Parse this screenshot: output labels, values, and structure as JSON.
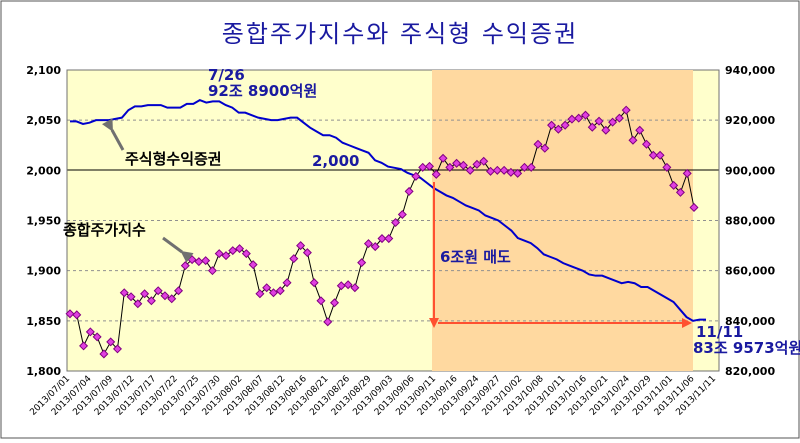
{
  "chart_data": {
    "type": "line",
    "title": "종합주가지수와 주식형 수익증권",
    "y_left": {
      "lim": [
        1800,
        2100
      ],
      "ticks": [
        "1,800",
        "1,850",
        "1,900",
        "1,950",
        "2,000",
        "2,050",
        "2,100"
      ]
    },
    "y_right": {
      "lim": [
        820000,
        940000
      ],
      "ticks": [
        "820,000",
        "840,000",
        "860,000",
        "880,000",
        "900,000",
        "920,000",
        "940,000"
      ]
    },
    "x_tick_labels": [
      "2013/07/01",
      "2013/07/04",
      "2013/07/09",
      "2013/07/12",
      "2013/07/17",
      "2013/07/22",
      "2013/07/25",
      "2013/07/30",
      "2013/08/02",
      "2013/08/07",
      "2013/08/12",
      "2013/08/16",
      "2013/08/21",
      "2013/08/26",
      "2013/08/29",
      "2013/09/03",
      "2013/09/06",
      "2013/09/11",
      "2013/09/16",
      "2013/09/24",
      "2013/09/27",
      "2013/10/02",
      "2013/10/08",
      "2013/10/11",
      "2013/10/16",
      "2013/10/21",
      "2013/10/24",
      "2013/10/29",
      "2013/11/01",
      "2013/11/06",
      "2013/11/11"
    ],
    "series": [
      {
        "name": "종합주가지수",
        "axis": "left",
        "color": "#800080",
        "marker_color": "#e040e0",
        "values": [
          1857,
          1856,
          1825,
          1839,
          1834,
          1817,
          1829,
          1822,
          1878,
          1874,
          1867,
          1877,
          1870,
          1880,
          1875,
          1872,
          1880,
          1905,
          1911,
          1909,
          1910,
          1900,
          1917,
          1915,
          1920,
          1922,
          1917,
          1906,
          1877,
          1883,
          1878,
          1880,
          1888,
          1912,
          1925,
          1918,
          1888,
          1870,
          1849,
          1868,
          1885,
          1886,
          1883,
          1908,
          1927,
          1924,
          1932,
          1932,
          1948,
          1956,
          1979,
          1994,
          2003,
          2004,
          1996,
          2012,
          2003,
          2007,
          2005,
          2000,
          2006,
          2009,
          1999,
          2000,
          2000,
          1998,
          1997,
          2003,
          2003,
          2026,
          2022,
          2045,
          2041,
          2045,
          2051,
          2052,
          2055,
          2043,
          2049,
          2040,
          2048,
          2052,
          2060,
          2030,
          2040,
          2026,
          2015,
          2015,
          2003,
          1985,
          1978,
          1997,
          1963
        ]
      },
      {
        "name": "주식형수익증권",
        "axis": "right",
        "color": "#0000cc",
        "values": [
          919500,
          919500,
          918500,
          919000,
          920000,
          920000,
          920000,
          920500,
          921000,
          924000,
          925500,
          925500,
          926000,
          926000,
          926000,
          925000,
          925000,
          925000,
          926500,
          926500,
          928000,
          927000,
          927500,
          927500,
          926000,
          925000,
          923000,
          923000,
          922000,
          921000,
          920500,
          920000,
          920000,
          920500,
          921000,
          921000,
          919000,
          917000,
          915500,
          914000,
          914000,
          913000,
          911000,
          910000,
          909000,
          908000,
          907000,
          904000,
          903000,
          901500,
          901000,
          900500,
          899000,
          898000,
          897000,
          895000,
          893000,
          891500,
          890000,
          889000,
          887500,
          886000,
          885000,
          884000,
          882000,
          881000,
          880000,
          878000,
          876000,
          873000,
          872000,
          871000,
          869000,
          866500,
          865500,
          864500,
          863000,
          862000,
          861000,
          860000,
          858500,
          858000,
          858000,
          857000,
          856000,
          855000,
          855500,
          855000,
          853500,
          853500,
          852000,
          850500,
          849000,
          847500,
          844500,
          841500,
          840000,
          840500,
          840500
        ]
      }
    ],
    "reference_line": {
      "axis": "left",
      "value": 2000,
      "label": "2,000"
    },
    "highlight_region": {
      "from": "2013/09/11",
      "to": "2013/11/07"
    },
    "annotations": {
      "peak_date": "7/26",
      "peak_amount": "92조 8900억원",
      "end_date": "11/11",
      "end_amount": "83조 9573억원",
      "sell_label": "6조원 매도",
      "fund_label": "주식형수익증권",
      "index_label": "종합주가지수"
    },
    "grid": true,
    "legend": "none"
  }
}
